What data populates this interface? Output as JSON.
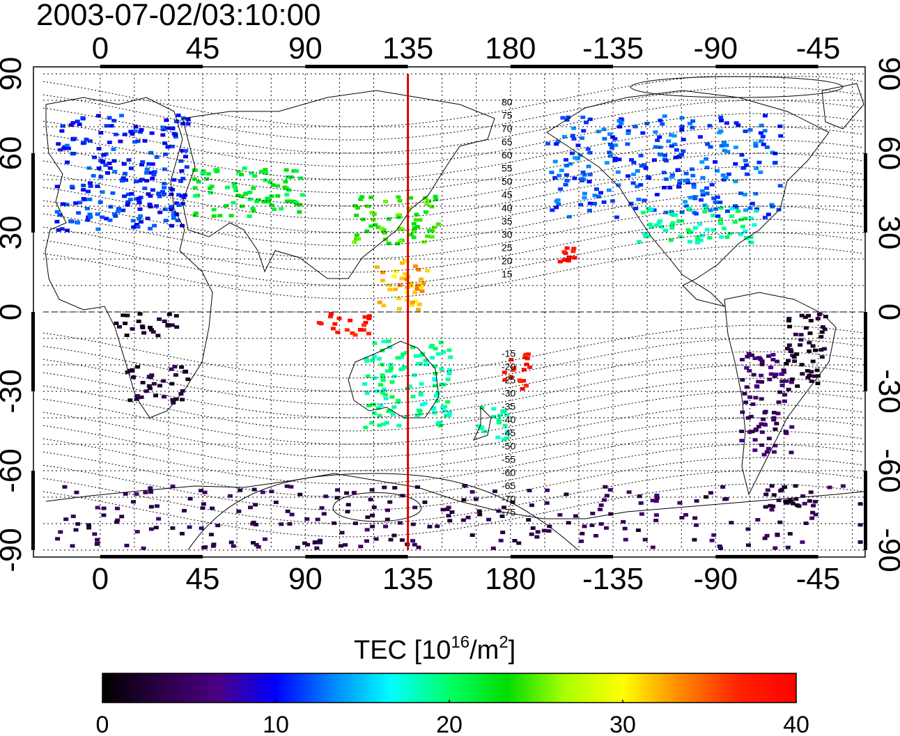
{
  "timestamp": "2003-07-02/03:10:00",
  "lon_ticks": [
    "0",
    "45",
    "90",
    "135",
    "180",
    "-135",
    "-90",
    "-45"
  ],
  "lat_ticks": [
    "90",
    "60",
    "30",
    "0",
    "-30",
    "-60",
    "-90"
  ],
  "mag_lat_labels": [
    "80",
    "75",
    "70",
    "65",
    "60",
    "55",
    "50",
    "45",
    "40",
    "35",
    "30",
    "25",
    "20",
    "15",
    "-15",
    "-20",
    "-25",
    "-30",
    "-35",
    "-40",
    "-45",
    "-50",
    "-55",
    "-60",
    "-65",
    "-70",
    "-75"
  ],
  "meridian_longitude": 135,
  "colorbar": {
    "title_prefix": "TEC  [10",
    "title_exp1": "16",
    "title_mid": "/m",
    "title_exp2": "2",
    "title_suffix": "]",
    "ticks": [
      "0",
      "10",
      "20",
      "30",
      "40"
    ],
    "min": 0,
    "max": 40,
    "stops": [
      "#000000",
      "#2a0044",
      "#4b0082",
      "#0000ff",
      "#0088ff",
      "#00ffff",
      "#00ff66",
      "#00dd00",
      "#aaff00",
      "#ffff00",
      "#ff8800",
      "#ff2200",
      "#ff0000"
    ]
  },
  "colors": {
    "meridian": "#dd0000",
    "coast": "#000000",
    "grid": "#000000"
  },
  "chart_data": {
    "type": "heatmap",
    "title": "2003-07-02/03:10:00",
    "colorbar_label": "TEC [10^16/m^2]",
    "colorbar_range": [
      0,
      40
    ],
    "xlim": [
      -25,
      335
    ],
    "ylim": [
      -90,
      90
    ],
    "regions": [
      {
        "lon_from": -20,
        "lon_to": 40,
        "lat_from": 30,
        "lat_to": 75,
        "tec": 11
      },
      {
        "lon_from": 40,
        "lon_to": 90,
        "lat_from": 35,
        "lat_to": 55,
        "tec": 22
      },
      {
        "lon_from": 110,
        "lon_to": 150,
        "lat_from": 25,
        "lat_to": 45,
        "tec": 24
      },
      {
        "lon_from": 120,
        "lon_to": 145,
        "lat_from": 0,
        "lat_to": 20,
        "tec": 32
      },
      {
        "lon_from": 95,
        "lon_to": 120,
        "lat_from": -10,
        "lat_to": 0,
        "tec": 38
      },
      {
        "lon_from": 115,
        "lon_to": 155,
        "lat_from": -45,
        "lat_to": -10,
        "tec": 19
      },
      {
        "lon_from": 165,
        "lon_to": 180,
        "lat_from": -50,
        "lat_to": -35,
        "tec": 18
      },
      {
        "lon_from": 175,
        "lon_to": 190,
        "lat_from": -30,
        "lat_to": -15,
        "tec": 38
      },
      {
        "lon_from": 200,
        "lon_to": 210,
        "lat_from": 18,
        "lat_to": 25,
        "tec": 39
      },
      {
        "lon_from": 195,
        "lon_to": 300,
        "lat_from": 35,
        "lat_to": 75,
        "tec": 12
      },
      {
        "lon_from": 235,
        "lon_to": 290,
        "lat_from": 25,
        "lat_to": 40,
        "tec": 19
      },
      {
        "lon_from": 280,
        "lon_to": 305,
        "lat_from": -55,
        "lat_to": -15,
        "tec": 5
      },
      {
        "lon_from": 300,
        "lon_to": 320,
        "lat_from": -30,
        "lat_to": 0,
        "tec": 2
      },
      {
        "lon_from": 10,
        "lon_to": 40,
        "lat_from": -35,
        "lat_to": -20,
        "tec": 3
      },
      {
        "lon_from": 5,
        "lon_to": 35,
        "lat_from": -10,
        "lat_to": 0,
        "tec": 2
      },
      {
        "lon_from": -20,
        "lon_to": 335,
        "lat_from": -90,
        "lat_to": -65,
        "tec": 4
      },
      {
        "lon_from": 290,
        "lon_to": 310,
        "lat_from": -75,
        "lat_to": -65,
        "tec": 1
      }
    ]
  }
}
